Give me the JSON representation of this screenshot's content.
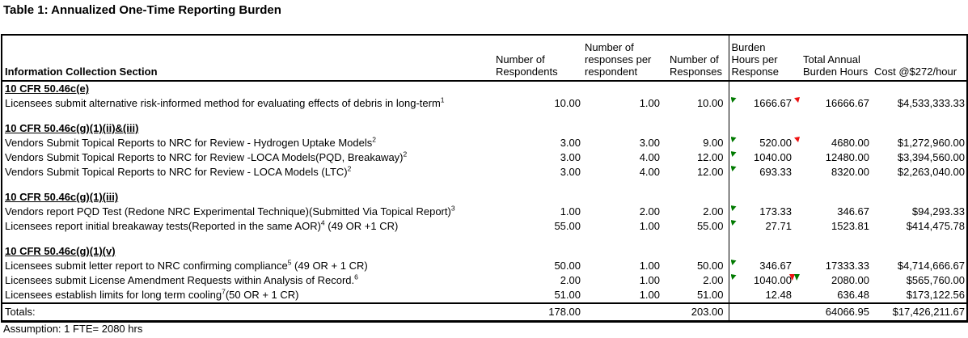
{
  "title": "Table 1: Annualized One-Time Reporting Burden",
  "footnote": "Assumption: 1 FTE= 2080 hrs",
  "colors": {
    "flag_green": "#007a00",
    "flag_red": "#ee1111",
    "border": "#000000"
  },
  "table": {
    "columns": [
      {
        "id": "section",
        "label": "Information Collection Section",
        "lines": [
          "Information Collection Section"
        ]
      },
      {
        "id": "respondents",
        "label": "Number of Respondents",
        "lines": [
          "Number of",
          "Respondents"
        ]
      },
      {
        "id": "responses-per-respondent",
        "label": "Number of responses per respondent",
        "lines": [
          "Number of",
          "responses per",
          "respondent"
        ]
      },
      {
        "id": "responses",
        "label": "Number of Responses",
        "lines": [
          "Number of",
          "Responses"
        ]
      },
      {
        "id": "burden-hours-per-response",
        "label": "Burden Hours per Response",
        "lines": [
          "Burden",
          "Hours per",
          "Response"
        ]
      },
      {
        "id": "total-annual-burden-hours",
        "label": "Total Annual Burden Hours",
        "lines": [
          "Total Annual",
          "Burden Hours"
        ]
      },
      {
        "id": "cost",
        "label": "Cost @$272/hour",
        "lines": [
          "Cost @$272/hour"
        ]
      }
    ],
    "rows": [
      {
        "type": "section",
        "label": "10 CFR 50.46c(e)"
      },
      {
        "type": "data",
        "label": "Licensees submit alternative risk-informed method for evaluating effects of debris in long-term",
        "sup": "1",
        "suffix": "",
        "values": [
          "10.00",
          "1.00",
          "10.00",
          "1666.67",
          "16666.67",
          "$4,533,333.33"
        ],
        "flags": {
          "tl": "green",
          "tr": "red"
        }
      },
      {
        "type": "spacer"
      },
      {
        "type": "section",
        "label": "10 CFR 50.46c(g)(1)(ii)&(iii)"
      },
      {
        "type": "data",
        "label": "Vendors Submit Topical Reports to NRC for Review - Hydrogen Uptake Models",
        "sup": "2",
        "suffix": "",
        "values": [
          "3.00",
          "3.00",
          "9.00",
          "520.00",
          "4680.00",
          "$1,272,960.00"
        ],
        "flags": {
          "tl": "green",
          "tr": "red"
        }
      },
      {
        "type": "data",
        "label": "Vendors Submit Topical Reports to NRC for Review -LOCA  Models(PQD, Breakaway)",
        "sup": "2",
        "suffix": "",
        "values": [
          "3.00",
          "4.00",
          "12.00",
          "1040.00",
          "12480.00",
          "$3,394,560.00"
        ],
        "flags": {
          "tl": "green"
        }
      },
      {
        "type": "data",
        "label": "Vendors Submit Topical Reports to NRC for Review - LOCA Models (LTC)",
        "sup": "2",
        "suffix": "",
        "values": [
          "3.00",
          "4.00",
          "12.00",
          "693.33",
          "8320.00",
          "$2,263,040.00"
        ],
        "flags": {
          "tl": "green"
        }
      },
      {
        "type": "spacer"
      },
      {
        "type": "section",
        "label": "10 CFR 50.46c(g)(1)(iii)"
      },
      {
        "type": "data",
        "label": "Vendors report PQD  Test (Redone NRC Experimental  Technique)(Submitted Via Topical Report)",
        "sup": "3",
        "suffix": "",
        "values": [
          "1.00",
          "2.00",
          "2.00",
          "173.33",
          "346.67",
          "$94,293.33"
        ],
        "flags": {
          "tl": "green"
        }
      },
      {
        "type": "data",
        "label": "Licensees report initial breakaway tests(Reported in the same AOR)",
        "sup": "4",
        "suffix": " (49 OR +1 CR)",
        "values": [
          "55.00",
          "1.00",
          "55.00",
          "27.71",
          "1523.81",
          "$414,475.78"
        ],
        "flags": {
          "tl": "green"
        }
      },
      {
        "type": "spacer"
      },
      {
        "type": "section",
        "label": "10 CFR 50.46c(g)(1)(v)"
      },
      {
        "type": "data",
        "label": "Licensees submit letter report to NRC confirming compliance",
        "sup": "5",
        "suffix": " (49 OR + 1 CR)",
        "values": [
          "50.00",
          "1.00",
          "50.00",
          "346.67",
          "17333.33",
          "$4,714,666.67"
        ],
        "flags": {
          "tl": "green"
        }
      },
      {
        "type": "data",
        "label": "Licensees submit License Amendment Requests within Analysis of Record.",
        "sup": "6",
        "suffix": "",
        "values": [
          "2.00",
          "1.00",
          "2.00",
          "1040.00",
          "2080.00",
          "$565,760.00"
        ],
        "flags": {
          "tl": "green",
          "tr": "redgreen"
        }
      },
      {
        "type": "data",
        "label": "Licensees establish limits for long term  cooling",
        "sup": "7",
        "suffix": "(50 OR + 1 CR)",
        "values": [
          "51.00",
          "1.00",
          "51.00",
          "12.48",
          "636.48",
          "$173,122.56"
        ]
      },
      {
        "type": "totals",
        "label": "Totals:",
        "values": [
          "178.00",
          "",
          "203.00",
          "",
          "64066.95",
          "$17,426,211.67"
        ]
      }
    ]
  }
}
